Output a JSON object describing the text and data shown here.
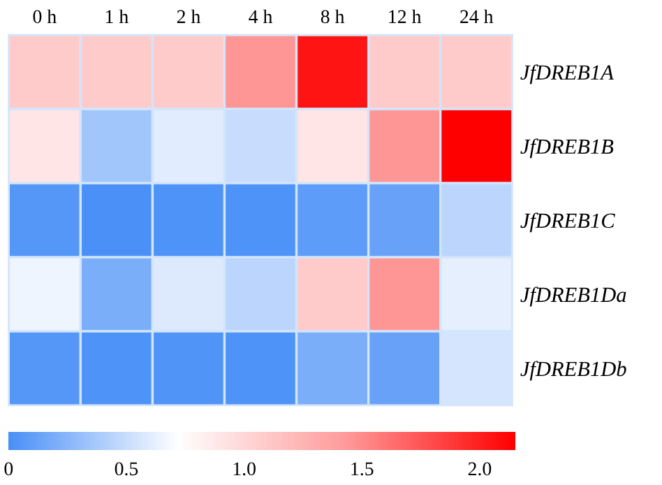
{
  "chart_data": {
    "type": "heatmap",
    "categories": [
      "0 h",
      "1 h",
      "2 h",
      "4 h",
      "8 h",
      "12 h",
      "24 h"
    ],
    "y_categories": [
      "JfDREB1A",
      "JfDREB1B",
      "JfDREB1C",
      "JfDREB1Da",
      "JfDREB1Db"
    ],
    "cells": [
      [
        1.1,
        1.1,
        1.1,
        1.45,
        2.05,
        1.1,
        1.1
      ],
      [
        0.9,
        0.35,
        0.6,
        0.5,
        0.9,
        1.45,
        2.15
      ],
      [
        0.05,
        0.0,
        0.02,
        0.02,
        0.08,
        0.12,
        0.45
      ],
      [
        0.65,
        0.2,
        0.58,
        0.45,
        1.1,
        1.45,
        0.62
      ],
      [
        0.05,
        0.02,
        0.03,
        0.02,
        0.2,
        0.12,
        0.55
      ]
    ],
    "colors": [
      "#4a90f7",
      "#ffffff",
      "#ff9a9a",
      "#ff0000"
    ],
    "clim": [
      0,
      2.15
    ],
    "cticks": [
      0,
      0.5,
      {
        "value": 1,
        "label": "1.0"
      },
      1.5,
      {
        "value": 2,
        "label": "2.0"
      }
    ]
  }
}
